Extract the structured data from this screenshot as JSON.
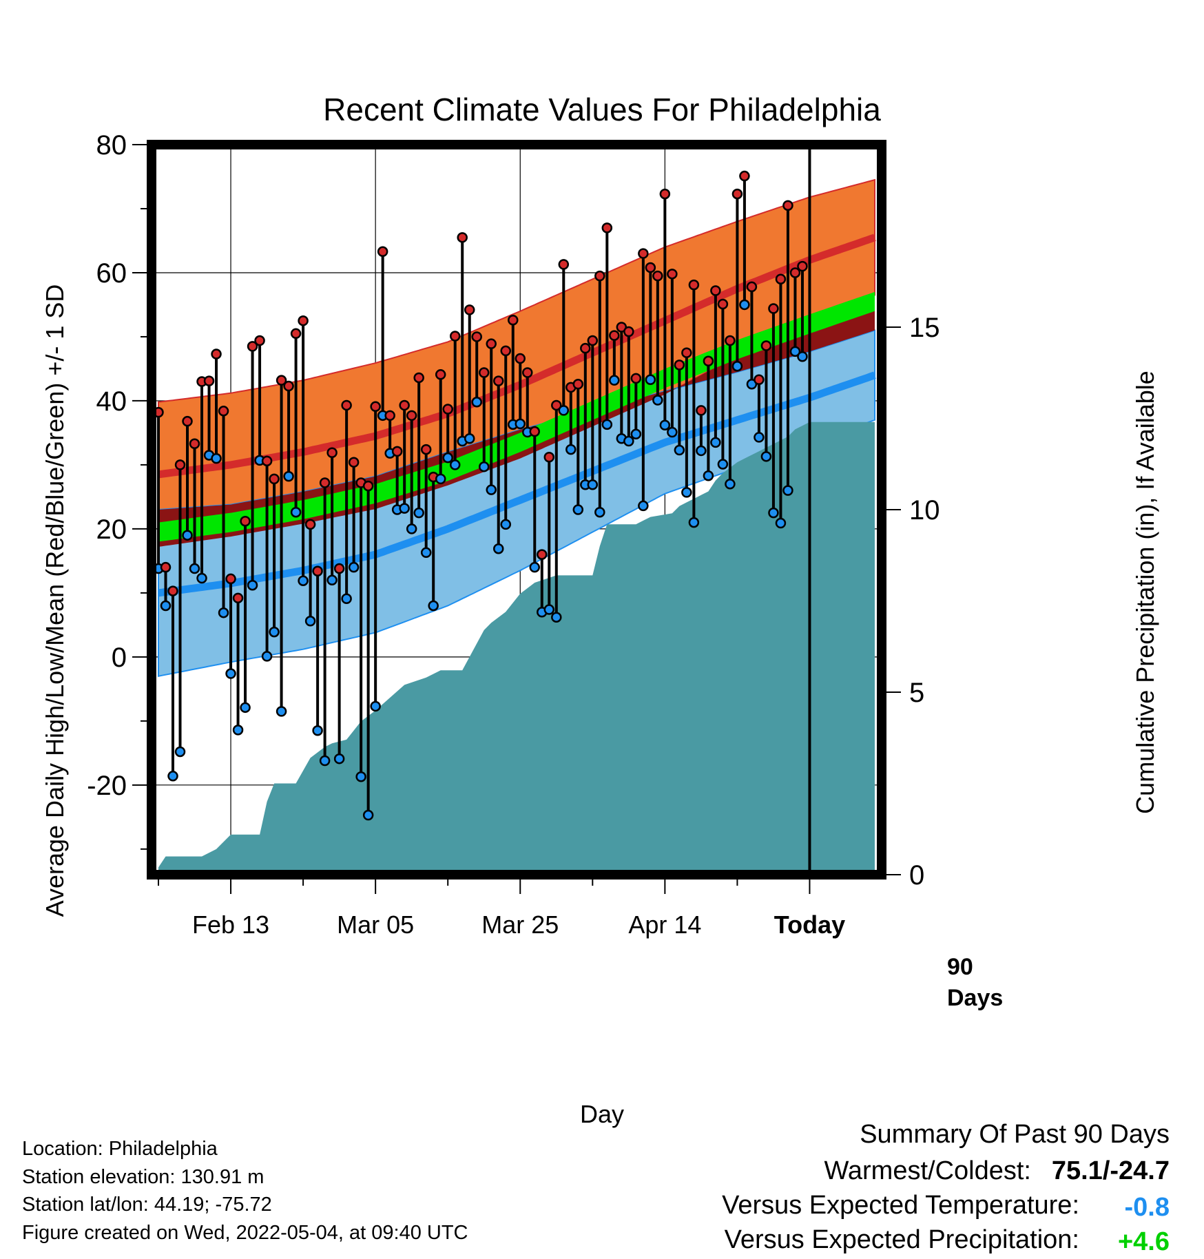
{
  "chart_data": {
    "type": "line",
    "title": "Recent Climate Values For Philadelphia",
    "xlabel": "Day",
    "ylabel": "Average Daily High/Low/Mean (Red/Blue/Green) +/- 1 SD",
    "y2label": "Cumulative Precipitation (in), If Available",
    "ylim": [
      -34,
      80
    ],
    "y2lim": [
      0,
      20
    ],
    "x_range_days": [
      -90,
      9
    ],
    "y_ticks": [
      "80",
      "60",
      "40",
      "20",
      "0",
      "-20"
    ],
    "y2_ticks": [
      "15",
      "10",
      "5",
      "0"
    ],
    "x_ticks": [
      {
        "day": -80,
        "label": "Feb 13"
      },
      {
        "day": -60,
        "label": "Mar 05"
      },
      {
        "day": -40,
        "label": "Mar 25"
      },
      {
        "day": -20,
        "label": "Apr 14"
      },
      {
        "day": 0,
        "label": "Today"
      }
    ],
    "grid": true,
    "today_label_1": "90",
    "today_label_2": "Days",
    "colors": {
      "high_band": "#f07830",
      "high_mean": "#d42b2b",
      "low_band": "#80bfe6",
      "low_mean": "#1e8ff0",
      "mean_band": "#00e600",
      "overlap": "#8b1414",
      "precip": "#4a9aa3",
      "high_point": "#d42b2b",
      "low_point": "#1e8ff0"
    },
    "normals": {
      "days": [
        -90,
        -80,
        -70,
        -60,
        -50,
        -40,
        -30,
        -20,
        -10,
        0,
        9
      ],
      "high_mean": [
        28.5,
        30.0,
        32.0,
        34.5,
        38.0,
        42.5,
        47.5,
        52.5,
        57.5,
        62.0,
        65.5
      ],
      "high_sd": [
        11.3,
        11.2,
        11.2,
        11.4,
        11.2,
        11.5,
        11.5,
        11.5,
        10.5,
        9.8,
        9.0
      ],
      "low_mean": [
        10.0,
        11.5,
        13.5,
        16.0,
        20.0,
        24.5,
        29.0,
        33.5,
        37.0,
        40.5,
        44.0
      ],
      "low_sd": [
        13.0,
        12.3,
        12.3,
        12.2,
        12.0,
        11.0,
        9.5,
        8.0,
        7.5,
        7.2,
        7.0
      ],
      "mean_mean": [
        19.5,
        21.0,
        23.0,
        25.5,
        29.0,
        33.5,
        38.5,
        43.5,
        48.0,
        52.0,
        55.5
      ],
      "mean_halfwidth": 1.5
    },
    "series": [
      {
        "name": "High",
        "values": [
          38.2,
          14.0,
          10.3,
          30.0,
          36.8,
          33.3,
          43.0,
          43.1,
          47.3,
          38.4,
          12.2,
          9.2,
          21.2,
          48.5,
          49.4,
          30.6,
          27.8,
          43.2,
          42.3,
          50.5,
          52.5,
          20.7,
          13.4,
          27.2,
          31.9,
          13.8,
          39.3,
          30.4,
          27.2,
          26.7,
          39.1,
          63.3,
          37.7,
          32.1,
          39.3,
          37.7,
          43.6,
          32.4,
          28.1,
          44.1,
          38.7,
          50.1,
          65.5,
          54.2,
          50.0,
          44.4,
          48.9,
          43.1,
          47.8,
          52.6,
          46.6,
          44.4,
          35.2,
          16.0,
          31.2,
          39.3,
          61.3,
          42.1,
          42.6,
          48.2,
          49.4,
          59.5,
          67.0,
          50.2,
          51.5,
          50.8,
          43.5,
          63.0,
          60.8,
          59.5,
          72.3,
          59.8,
          45.6,
          47.5,
          58.1,
          38.5,
          46.2,
          57.2,
          55.1,
          49.4,
          72.3,
          75.1,
          57.8,
          43.3,
          48.6,
          54.4,
          59.0,
          70.5,
          60.0,
          61.0
        ],
        "color": "#d42b2b"
      },
      {
        "name": "Low",
        "values": [
          13.8,
          8.0,
          -18.6,
          -14.8,
          19.0,
          13.8,
          12.3,
          31.5,
          31.0,
          6.9,
          -2.6,
          -11.4,
          -7.9,
          11.2,
          30.7,
          0.1,
          3.9,
          -8.5,
          28.2,
          22.6,
          11.9,
          5.6,
          -11.5,
          -16.2,
          12.0,
          -15.9,
          9.1,
          14.0,
          -18.7,
          -24.7,
          -7.7,
          37.7,
          31.8,
          23.0,
          23.2,
          20.0,
          22.5,
          16.3,
          8.0,
          27.8,
          31.1,
          30.0,
          33.7,
          34.1,
          39.8,
          29.7,
          26.1,
          16.9,
          20.7,
          36.3,
          36.4,
          35.1,
          14.0,
          7.0,
          7.4,
          6.2,
          38.5,
          32.4,
          23.0,
          26.9,
          26.9,
          22.6,
          36.3,
          43.2,
          34.1,
          33.7,
          34.8,
          23.6,
          43.3,
          40.1,
          36.2,
          35.1,
          32.3,
          25.7,
          21.0,
          32.2,
          28.3,
          33.5,
          30.1,
          27.0,
          45.4,
          55.0,
          42.6,
          34.3,
          31.3,
          22.5,
          20.9,
          26.0,
          47.7,
          46.9
        ],
        "color": "#1e8ff0"
      },
      {
        "name": "Cumulative Precipitation",
        "axis": "right",
        "days": [
          -90,
          -89,
          -84,
          -82,
          -80,
          -76,
          -75,
          -74,
          -71,
          -69,
          -67,
          -66,
          -64,
          -62,
          -60,
          -56,
          -53,
          -51,
          -48,
          -45,
          -44,
          -42,
          -40,
          -38,
          -35,
          -30,
          -29,
          -28,
          -24,
          -23,
          -22,
          -19,
          -18,
          -17,
          -15,
          -14,
          -13,
          -12,
          -10,
          -9,
          -8,
          -7,
          -6,
          -5,
          -3,
          -2,
          -1,
          0,
          9
        ],
        "values": [
          0.2,
          0.5,
          0.5,
          0.7,
          1.1,
          1.1,
          2.0,
          2.5,
          2.5,
          3.2,
          3.5,
          3.6,
          3.7,
          4.2,
          4.5,
          5.2,
          5.4,
          5.6,
          5.6,
          6.7,
          6.9,
          7.2,
          7.7,
          8.0,
          8.2,
          8.2,
          9.0,
          9.6,
          9.6,
          9.7,
          9.8,
          9.9,
          10.1,
          10.2,
          10.4,
          10.5,
          10.8,
          11.0,
          11.3,
          11.4,
          11.5,
          11.6,
          11.7,
          11.8,
          12.0,
          12.2,
          12.3,
          12.4,
          12.4
        ],
        "color": "#4a9aa3"
      }
    ]
  },
  "footer": {
    "location": "Location: Philadelphia",
    "elevation": "Station elevation: 130.91 m",
    "latlon": "Station lat/lon: 44.19; -75.72",
    "created": "Figure created on Wed, 2022-05-04, at 09:40 UTC"
  },
  "summary": {
    "heading": "Summary Of Past 90 Days",
    "warmest_label": "Warmest/Coldest:",
    "warmest_value": "75.1/-24.7",
    "temp_label": "Versus Expected Temperature:",
    "temp_value": "-0.8",
    "temp_color": "#1e8ff0",
    "precip_label": "Versus Expected Precipitation:",
    "precip_value": "+4.6",
    "precip_color": "#00d000"
  }
}
